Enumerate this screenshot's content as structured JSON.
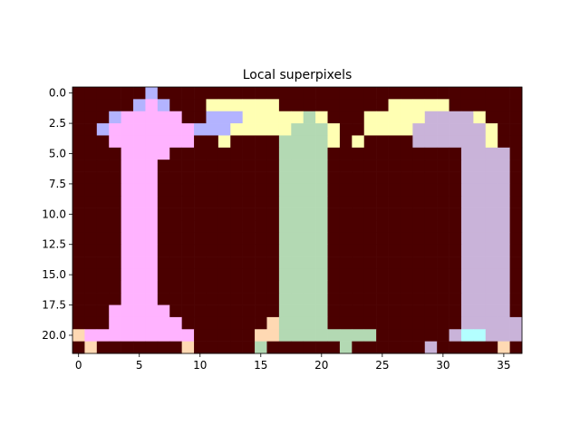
{
  "chart_data": {
    "type": "heatmap",
    "title": "Local superpixels",
    "xlabel": "",
    "ylabel": "",
    "grid": false,
    "xlim": [
      -0.5,
      36.5
    ],
    "ylim": [
      21.5,
      -0.5
    ],
    "x_ticks": [
      0,
      5,
      10,
      15,
      20,
      25,
      30,
      35
    ],
    "x_tick_labels": [
      "0",
      "5",
      "10",
      "15",
      "20",
      "25",
      "30",
      "35"
    ],
    "y_ticks": [
      0,
      2.5,
      5,
      7.5,
      10,
      12.5,
      15,
      17.5,
      20
    ],
    "y_tick_labels": [
      "0.0",
      "2.5",
      "5.0",
      "7.5",
      "10.0",
      "12.5",
      "15.0",
      "17.5",
      "20.0"
    ],
    "palette": {
      ".": "#4b0000",
      "B": "#b3b3ff",
      "P": "#ffb3ff",
      "Y": "#ffffb3",
      "G": "#b3d9b3",
      "L": "#c9b3d9",
      "O": "#ffd9b3",
      "C": "#b3ffff"
    },
    "rows": [
      "......B..............................",
      ".....BPB...YYYYYY.........YYYYY......",
      "...BPPPPP..BBBYYYYYGY...YYYYYLLLLY...",
      "..BPPPPPPPBBBYYYYYGGGY..YYYYLLLLLLY..",
      "...PPPPPPP..Y....GGGGY.Y....LLLLLLY..",
      "....PPPP.........GGGG...........LLLL.",
      "....PPP..........GGGG...........LLLL.",
      "....PPP..........GGGG...........LLLL.",
      "....PPP..........GGGG...........LLLL.",
      "....PPP..........GGGG...........LLLL.",
      "....PPP..........GGGG...........LLLL.",
      "....PPP..........GGGG...........LLLL.",
      "....PPP..........GGGG...........LLLL.",
      "....PPP..........GGGG...........LLLL.",
      "....PPP..........GGGG...........LLLL.",
      "....PPP..........GGGG...........LLLL.",
      "....PPP..........GGGG...........LLLL.",
      "....PPP..........GGGG...........LLLL.",
      "...PPPPP.........GGGG...........LLLL.",
      "...PPPPPP.......OGGGG...........LLLLL",
      "OPPPPPPPPP.....OOGGGGGGGG......LCCLLL",
      ".O.......O.....G......G......L.....O."
    ]
  }
}
